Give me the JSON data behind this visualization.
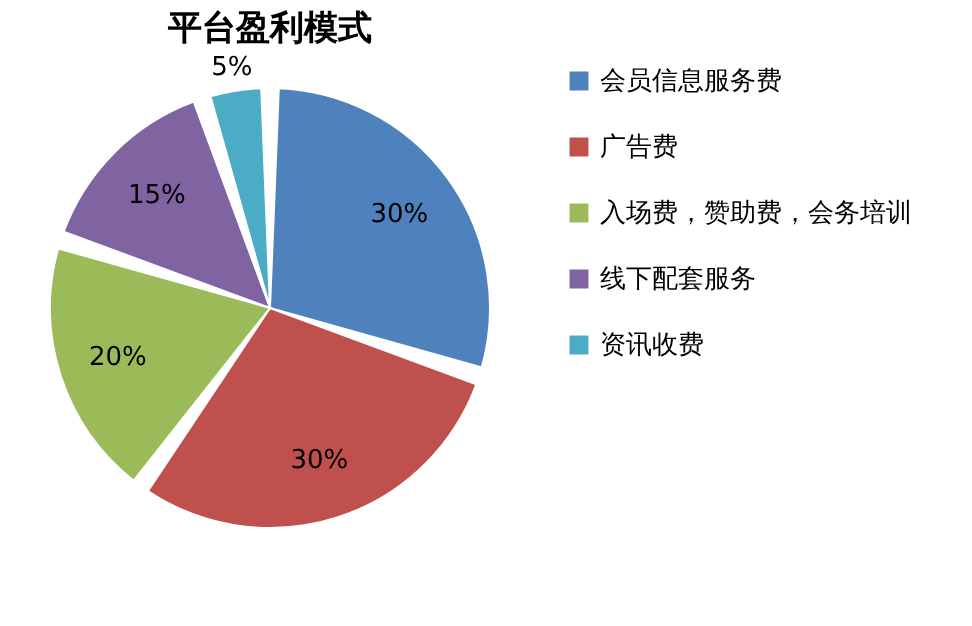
{
  "chart_data": {
    "type": "pie",
    "title": "平台盈利模式",
    "categories": [
      "会员信息服务费",
      "广告费",
      "入场费，赞助费，会务培训",
      "线下配套服务",
      "资讯收费"
    ],
    "values": [
      30,
      30,
      20,
      15,
      5
    ],
    "colors": [
      "#4f81bd",
      "#c0504d",
      "#9bbb59",
      "#8064a2",
      "#4bacc6"
    ],
    "value_labels": [
      "30%",
      "30%",
      "20%",
      "15%",
      "5%"
    ],
    "legend": "right"
  }
}
